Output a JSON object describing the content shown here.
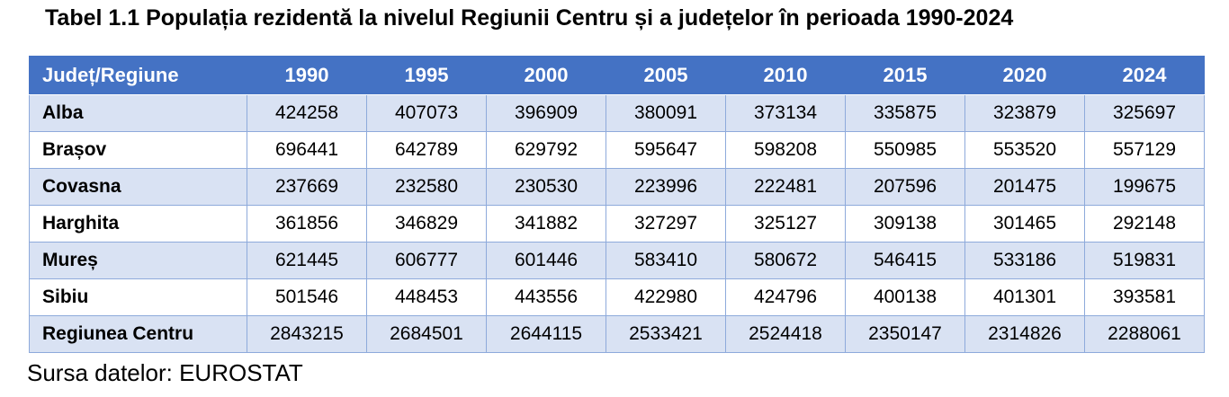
{
  "title": "Tabel 1.1 Populația rezidentă la nivelul Regiunii Centru și a județelor în perioada 1990-2024",
  "source_note": "Sursa datelor: EUROSTAT",
  "colors": {
    "header_bg": "#4472C4",
    "header_text": "#FFFFFF",
    "band_bg": "#D9E2F3",
    "row_bg": "#FFFFFF",
    "border": "#8EAADB",
    "text": "#000000"
  },
  "chart_data": {
    "type": "table",
    "title": "Populația rezidentă la nivelul Regiunii Centru și a județelor în perioada 1990-2024",
    "columns": [
      "Județ/Regiune",
      "1990",
      "1995",
      "2000",
      "2005",
      "2010",
      "2015",
      "2020",
      "2024"
    ],
    "rows": [
      {
        "label": "Alba",
        "values": [
          424258,
          407073,
          396909,
          380091,
          373134,
          335875,
          323879,
          325697
        ]
      },
      {
        "label": "Brașov",
        "values": [
          696441,
          642789,
          629792,
          595647,
          598208,
          550985,
          553520,
          557129
        ]
      },
      {
        "label": "Covasna",
        "values": [
          237669,
          232580,
          230530,
          223996,
          222481,
          207596,
          201475,
          199675
        ]
      },
      {
        "label": "Harghita",
        "values": [
          361856,
          346829,
          341882,
          327297,
          325127,
          309138,
          301465,
          292148
        ]
      },
      {
        "label": "Mureș",
        "values": [
          621445,
          606777,
          601446,
          583410,
          580672,
          546415,
          533186,
          519831
        ]
      },
      {
        "label": "Sibiu",
        "values": [
          501546,
          448453,
          443556,
          422980,
          424796,
          400138,
          401301,
          393581
        ]
      },
      {
        "label": "Regiunea Centru",
        "values": [
          2843215,
          2684501,
          2644115,
          2533421,
          2524418,
          2350147,
          2314826,
          2288061
        ],
        "total": true
      }
    ],
    "banding": "odd rows shaded light blue starting with first data row",
    "source": "EUROSTAT"
  }
}
